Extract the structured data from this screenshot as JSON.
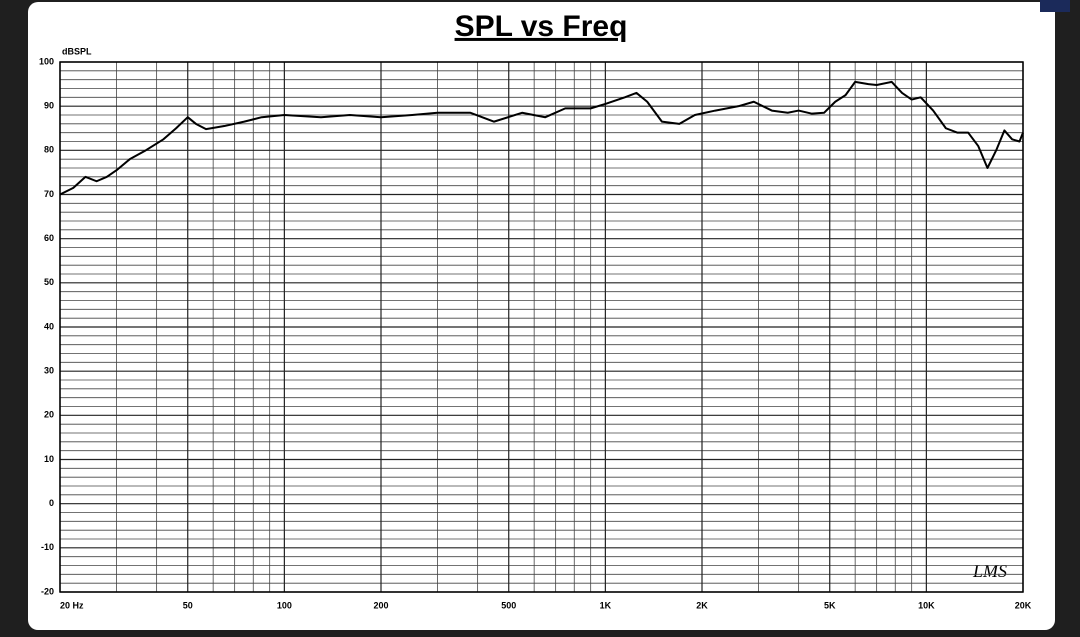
{
  "chart_data": {
    "type": "line",
    "title": "SPL vs Freq",
    "y_label": "dBSPL",
    "annotation": "LMS",
    "x": [
      20,
      22,
      24,
      26,
      28,
      30,
      33,
      37,
      42,
      46,
      50,
      53,
      57,
      65,
      75,
      85,
      100,
      130,
      160,
      200,
      250,
      300,
      380,
      450,
      550,
      650,
      750,
      900,
      1000,
      1150,
      1250,
      1350,
      1500,
      1700,
      1900,
      2200,
      2600,
      2900,
      3300,
      3700,
      4000,
      4400,
      4800,
      5200,
      5600,
      6000,
      6600,
      7000,
      7800,
      8400,
      9000,
      9600,
      10500,
      11500,
      12500,
      13500,
      14500,
      15500,
      16500,
      17500,
      18500,
      19500,
      20000
    ],
    "values": [
      70,
      71.5,
      74,
      73,
      74,
      75.5,
      78,
      80,
      82.5,
      85,
      87.5,
      86,
      84.8,
      85.5,
      86.5,
      87.5,
      88,
      87.5,
      88,
      87.5,
      88,
      88.5,
      88.5,
      86.5,
      88.5,
      87.5,
      89.5,
      89.5,
      90.5,
      92,
      93,
      91,
      86.5,
      86,
      88,
      89,
      90,
      91,
      89,
      88.5,
      89,
      88.3,
      88.5,
      91,
      92.5,
      95.5,
      95,
      94.8,
      95.5,
      93,
      91.5,
      92,
      89,
      85,
      84,
      84,
      81,
      76,
      80,
      84.5,
      82.5,
      82,
      84
    ],
    "color": "#000000",
    "xscale": "log",
    "xlim": [
      20,
      20000
    ],
    "ylim": [
      -20,
      100
    ],
    "xticks": [
      {
        "value": 20,
        "label": "20 Hz"
      },
      50,
      100,
      200,
      500,
      {
        "value": 1000,
        "label": "1K"
      },
      {
        "value": 2000,
        "label": "2K"
      },
      {
        "value": 5000,
        "label": "5K"
      },
      {
        "value": 10000,
        "label": "10K"
      },
      {
        "value": 20000,
        "label": "20K"
      }
    ],
    "yticks": [
      -20,
      -10,
      0,
      10,
      20,
      30,
      40,
      50,
      60,
      70,
      80,
      90,
      100
    ],
    "minor_xticks": [
      30,
      40,
      60,
      70,
      80,
      90,
      300,
      400,
      600,
      700,
      800,
      900,
      3000,
      4000,
      6000,
      7000,
      8000,
      9000
    ],
    "minor_yticks": [
      -18,
      -16,
      -14,
      -12,
      -8,
      -6,
      -4,
      -2,
      2,
      4,
      6,
      8,
      12,
      14,
      16,
      18,
      22,
      24,
      26,
      28,
      32,
      34,
      36,
      38,
      42,
      44,
      46,
      48,
      52,
      54,
      56,
      58,
      62,
      64,
      66,
      68,
      72,
      74,
      76,
      78,
      82,
      84,
      86,
      88,
      92,
      94,
      96,
      98
    ],
    "grid": true
  }
}
